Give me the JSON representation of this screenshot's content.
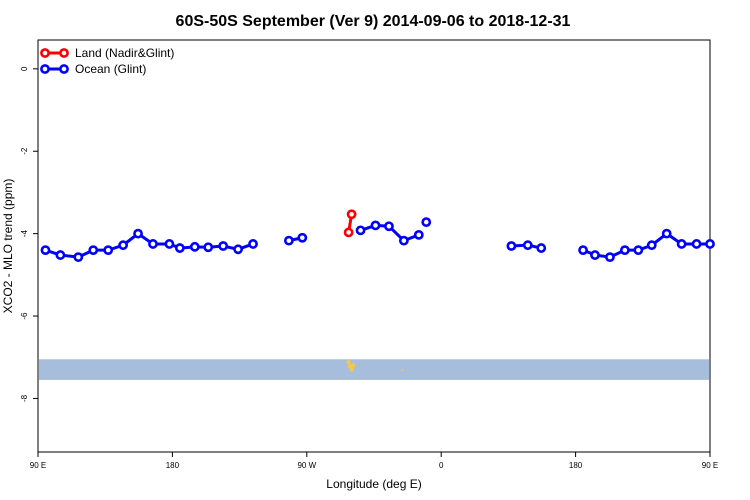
{
  "chart_data": {
    "type": "line",
    "title": "60S-50S September (Ver 9)   2014-09-06 to 2018-12-31",
    "xlabel": "Longitude (deg E)",
    "ylabel": "XCO2 - MLO trend (ppm)",
    "xlim": [
      90,
      450
    ],
    "ylim": [
      -9.3,
      0.7
    ],
    "x_ticks": [
      {
        "value": 90,
        "label": "90 E"
      },
      {
        "value": 180,
        "label": "180"
      },
      {
        "value": 270,
        "label": "90 W"
      },
      {
        "value": 360,
        "label": "0"
      },
      {
        "value": 450,
        "label": "180"
      }
    ],
    "x_ticks_extra": [
      {
        "value": 540,
        "label": "90 E"
      }
    ],
    "y_ticks": [
      0,
      -2,
      -4,
      -6,
      -8
    ],
    "grid": false,
    "legend_position": "top-left",
    "band": {
      "y_from": -7.55,
      "y_to": -7.05,
      "color": "#a6bddb"
    },
    "series": [
      {
        "name": "Land (Nadir&Glint)",
        "color": "#ff0000",
        "segments": [
          [
            [
              298,
              -3.97
            ],
            [
              300,
              -3.53
            ]
          ]
        ]
      },
      {
        "name": "Ocean (Glint)",
        "color": "#0000ff",
        "segments": [
          [
            [
              95,
              -4.4
            ],
            [
              105,
              -4.52
            ],
            [
              117,
              -4.57
            ],
            [
              127,
              -4.4
            ],
            [
              137,
              -4.4
            ],
            [
              147,
              -4.28
            ],
            [
              157,
              -4.0
            ],
            [
              167,
              -4.25
            ],
            [
              178,
              -4.25
            ],
            [
              185,
              -4.35
            ],
            [
              195,
              -4.32
            ],
            [
              204,
              -4.33
            ],
            [
              214,
              -4.3
            ],
            [
              224,
              -4.38
            ],
            [
              234,
              -4.25
            ]
          ],
          [
            [
              258,
              -4.17
            ],
            [
              267,
              -4.1
            ]
          ],
          [
            [
              306,
              -3.92
            ],
            [
              316,
              -3.8
            ],
            [
              325,
              -3.82
            ],
            [
              335,
              -4.17
            ],
            [
              345,
              -4.03
            ]
          ],
          [
            [
              350,
              -3.72
            ]
          ],
          [
            [
              407,
              -4.3
            ],
            [
              418,
              -4.28
            ],
            [
              427,
              -4.35
            ]
          ]
        ],
        "x_range": [
          90,
          540
        ],
        "segments_scaled": [
          [
            [
              455,
              -4.4
            ],
            [
              463,
              -4.52
            ],
            [
              473,
              -4.57
            ],
            [
              483,
              -4.4
            ],
            [
              492,
              -4.4
            ],
            [
              501,
              -4.28
            ],
            [
              511,
              -4.0
            ],
            [
              521,
              -4.25
            ],
            [
              531,
              -4.25
            ],
            [
              540,
              -4.25
            ]
          ]
        ]
      }
    ]
  }
}
